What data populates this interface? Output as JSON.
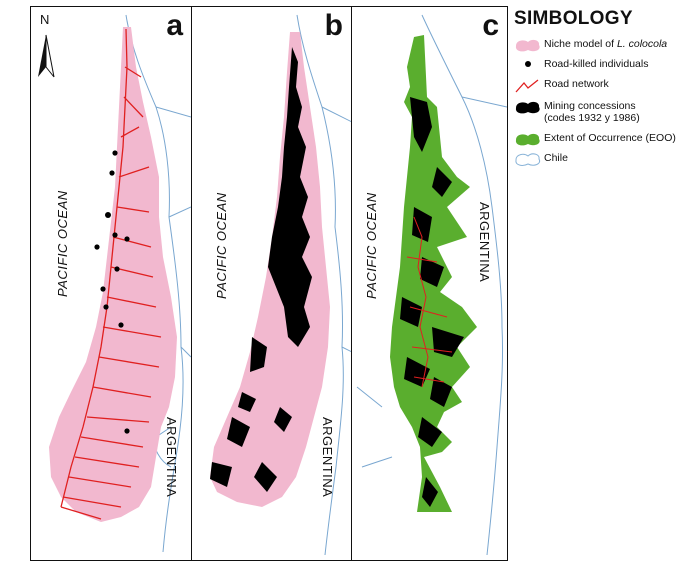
{
  "panels": [
    {
      "letter": "a",
      "ocean": "PACIFIC OCEAN",
      "country": "ARGENTINA"
    },
    {
      "letter": "b",
      "ocean": "PACIFIC OCEAN",
      "country": "ARGENTINA"
    },
    {
      "letter": "c",
      "ocean": "PACIFIC OCEAN",
      "country": "ARGENTINA"
    }
  ],
  "north_label": "N",
  "legend": {
    "title": "SIMBOLOGY",
    "items": [
      {
        "symbol": "pink-blob",
        "color": "#f2b8cf",
        "text_before": "Niche model of ",
        "text_italic": "L. colocola",
        "text_after": ""
      },
      {
        "symbol": "black-dot",
        "color": "#000000",
        "text": "Road-killed individuals"
      },
      {
        "symbol": "red-line",
        "color": "#e02020",
        "text": "Road network"
      },
      {
        "symbol": "black-blob",
        "color": "#000000",
        "text": "Mining concessions",
        "text2": "(codes 1932 y 1986)"
      },
      {
        "symbol": "green-blob",
        "color": "#5aae2e",
        "text": "Extent of Occurrence (EOO)"
      },
      {
        "symbol": "outline-blob",
        "color": "#8ab4d8",
        "text": "Chile"
      }
    ]
  },
  "colors": {
    "niche": "#f2b8cf",
    "road": "#e02020",
    "mining": "#000000",
    "eoo": "#5aae2e",
    "border": "#7aa7d0"
  }
}
